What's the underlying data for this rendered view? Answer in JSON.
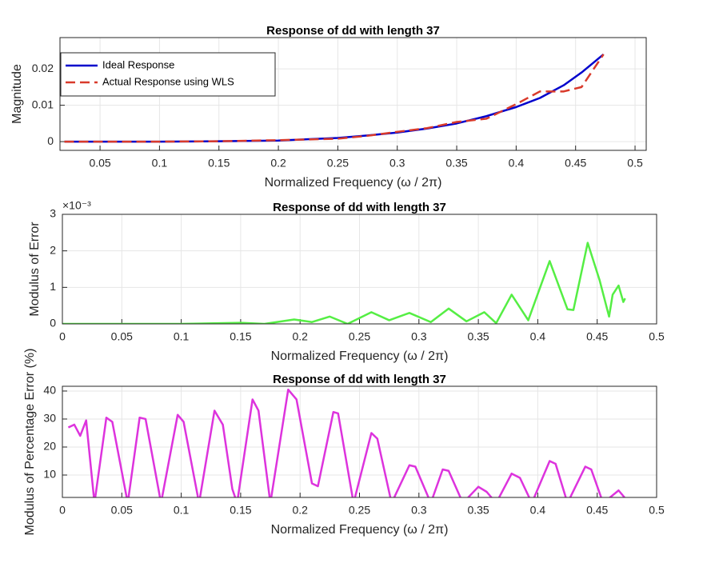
{
  "chart_data": [
    {
      "type": "line",
      "title": "Response of dd with length 37",
      "xlabel": "Normalized Frequency (ω / 2π)",
      "ylabel": "Magnitude",
      "x": [
        0.02,
        0.05,
        0.1,
        0.15,
        0.2,
        0.25,
        0.275,
        0.3,
        0.325,
        0.35,
        0.375,
        0.4,
        0.42,
        0.44,
        0.455,
        0.4735
      ],
      "series": [
        {
          "name": "Ideal Response",
          "color": "#0000cc",
          "line_style": "solid",
          "values": [
            0,
            0,
            0,
            0.0001,
            0.0003,
            0.001,
            0.0017,
            0.0025,
            0.0036,
            0.005,
            0.007,
            0.0095,
            0.012,
            0.0155,
            0.019,
            0.024
          ]
        },
        {
          "name": "Actual Response using WLS",
          "color": "#d93a2b",
          "line_style": "dashed",
          "values": [
            0,
            0,
            0,
            0.0001,
            0.0004,
            0.0008,
            0.0016,
            0.0027,
            0.0037,
            0.0054,
            0.0063,
            0.0103,
            0.0138,
            0.0138,
            0.015,
            0.024
          ]
        }
      ],
      "xlim": [
        0.0163,
        0.5094
      ],
      "ylim": [
        -0.0024,
        0.0286
      ],
      "xticks": [
        0.05,
        0.1,
        0.15,
        0.2,
        0.25,
        0.3,
        0.35,
        0.4,
        0.45,
        0.5
      ],
      "yticks": [
        0,
        0.01,
        0.02
      ],
      "grid": true,
      "legend": "upper left"
    },
    {
      "type": "line",
      "title": "Response of dd with length 37",
      "xlabel": "Normalized Frequency (ω / 2π)",
      "ylabel": "Modulus of Error",
      "y_multiplier": "×10⁻³",
      "x": [
        0,
        0.1,
        0.15,
        0.17,
        0.195,
        0.21,
        0.225,
        0.24,
        0.26,
        0.275,
        0.292,
        0.31,
        0.325,
        0.34,
        0.355,
        0.365,
        0.378,
        0.392,
        0.41,
        0.425,
        0.43,
        0.442,
        0.452,
        0.46,
        0.463,
        0.468,
        0.472,
        0.4735
      ],
      "series": [
        {
          "color": "#55ee44",
          "values": [
            0,
            0,
            0.03,
            0,
            0.12,
            0.05,
            0.2,
            0,
            0.32,
            0.1,
            0.3,
            0.05,
            0.42,
            0.07,
            0.32,
            0.02,
            0.8,
            0.1,
            1.72,
            0.4,
            0.38,
            2.22,
            1.2,
            0.2,
            0.8,
            1.05,
            0.6,
            0.7
          ]
        }
      ],
      "xlim": [
        0,
        0.5
      ],
      "ylim": [
        0,
        3
      ],
      "xticks": [
        0,
        0.05,
        0.1,
        0.15,
        0.2,
        0.25,
        0.3,
        0.35,
        0.4,
        0.45,
        0.5
      ],
      "yticks": [
        0,
        1,
        2,
        3
      ],
      "grid": true
    },
    {
      "type": "line",
      "title": "Response of dd with length 37",
      "xlabel": "Normalized Frequency (ω / 2π)",
      "ylabel": "Modulus of Percentage Error (%)",
      "x": [
        0.005,
        0.01,
        0.015,
        0.02,
        0.027,
        0.037,
        0.042,
        0.055,
        0.065,
        0.07,
        0.083,
        0.097,
        0.102,
        0.115,
        0.128,
        0.135,
        0.143,
        0.147,
        0.16,
        0.165,
        0.175,
        0.19,
        0.197,
        0.21,
        0.215,
        0.228,
        0.232,
        0.245,
        0.26,
        0.265,
        0.277,
        0.292,
        0.297,
        0.31,
        0.32,
        0.325,
        0.337,
        0.35,
        0.357,
        0.365,
        0.378,
        0.385,
        0.395,
        0.41,
        0.415,
        0.425,
        0.44,
        0.445,
        0.455,
        0.468,
        0.473
      ],
      "series": [
        {
          "color": "#dd33dd",
          "values": [
            27,
            28,
            24,
            29.5,
            0,
            30.5,
            29,
            0,
            30.5,
            30,
            0,
            31.5,
            29,
            0,
            33,
            28,
            5,
            0,
            37,
            33,
            0,
            40.5,
            37,
            7,
            6,
            32.5,
            32,
            0,
            25,
            23,
            0,
            13.5,
            13,
            0,
            12,
            11.5,
            0,
            5.8,
            4,
            0,
            10.5,
            9,
            0,
            15,
            14,
            0,
            13,
            12,
            0,
            4.5,
            2
          ]
        }
      ],
      "xlim": [
        0,
        0.5
      ],
      "ylim": [
        2,
        41.7
      ],
      "xticks": [
        0,
        0.05,
        0.1,
        0.15,
        0.2,
        0.25,
        0.3,
        0.35,
        0.4,
        0.45,
        0.5
      ],
      "yticks": [
        10,
        20,
        30,
        40
      ],
      "grid": true
    }
  ]
}
